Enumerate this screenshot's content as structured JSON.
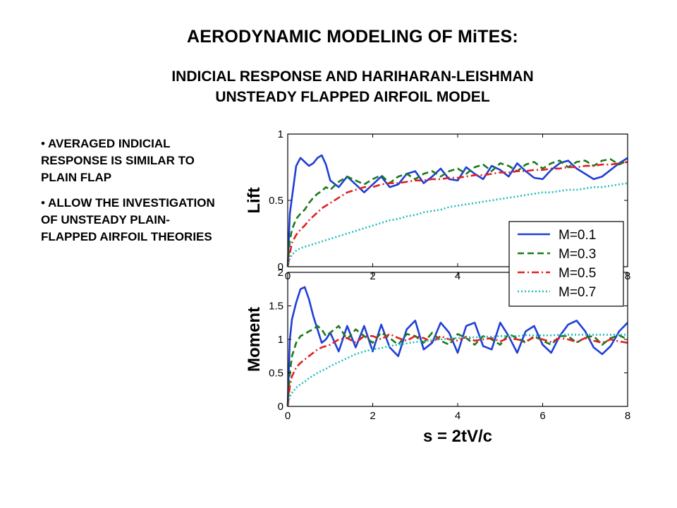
{
  "slide": {
    "title": "AERODYNAMIC  MODELING OF MiTES:",
    "subtitle_line1": "INDICIAL RESPONSE AND HARIHARAN-LEISHMAN",
    "subtitle_line2": "UNSTEADY FLAPPED AIRFOIL MODEL",
    "bullets": [
      "AVERAGED INDICIAL RESPONSE IS SIMILAR TO PLAIN FLAP",
      "ALLOW THE INVESTIGATION OF UNSTEADY PLAIN-FLAPPED AIRFOIL THEORIES"
    ],
    "bullet_glyph": "•"
  },
  "chart_data": [
    {
      "type": "line",
      "panel": "top",
      "ylabel": "Lift",
      "xlabel": "",
      "xlim": [
        0,
        8
      ],
      "ylim": [
        0,
        1
      ],
      "yticks": [
        "0",
        "0.5",
        "1"
      ],
      "xticks": [
        "0",
        "2",
        "4",
        "6",
        "8"
      ],
      "grid": false,
      "legend_position": "right",
      "x": [
        0,
        0.05,
        0.1,
        0.2,
        0.3,
        0.4,
        0.5,
        0.6,
        0.7,
        0.8,
        0.9,
        1.0,
        1.2,
        1.4,
        1.6,
        1.8,
        2.0,
        2.2,
        2.4,
        2.6,
        2.8,
        3.0,
        3.2,
        3.4,
        3.6,
        3.8,
        4.0,
        4.2,
        4.4,
        4.6,
        4.8,
        5.0,
        5.2,
        5.4,
        5.6,
        5.8,
        6.0,
        6.2,
        6.4,
        6.6,
        6.8,
        7.0,
        7.2,
        7.4,
        7.6,
        7.8,
        8.0
      ],
      "series": [
        {
          "name": "M=0.1",
          "color": "#1f3fd6",
          "dash": "solid",
          "values": [
            0.0,
            0.4,
            0.52,
            0.76,
            0.82,
            0.79,
            0.76,
            0.78,
            0.82,
            0.84,
            0.77,
            0.65,
            0.6,
            0.68,
            0.62,
            0.56,
            0.62,
            0.68,
            0.6,
            0.62,
            0.7,
            0.72,
            0.63,
            0.68,
            0.74,
            0.66,
            0.65,
            0.75,
            0.7,
            0.66,
            0.76,
            0.73,
            0.68,
            0.78,
            0.72,
            0.67,
            0.66,
            0.73,
            0.78,
            0.8,
            0.74,
            0.7,
            0.66,
            0.68,
            0.73,
            0.78,
            0.82
          ]
        },
        {
          "name": "M=0.3",
          "color": "#1a7a1a",
          "dash": "dashed",
          "values": [
            0.0,
            0.2,
            0.28,
            0.36,
            0.4,
            0.43,
            0.48,
            0.52,
            0.55,
            0.57,
            0.6,
            0.58,
            0.64,
            0.68,
            0.65,
            0.62,
            0.66,
            0.69,
            0.63,
            0.68,
            0.7,
            0.66,
            0.7,
            0.72,
            0.68,
            0.72,
            0.74,
            0.7,
            0.75,
            0.77,
            0.72,
            0.78,
            0.76,
            0.72,
            0.77,
            0.79,
            0.74,
            0.78,
            0.8,
            0.75,
            0.79,
            0.8,
            0.76,
            0.8,
            0.81,
            0.77,
            0.8
          ]
        },
        {
          "name": "M=0.5",
          "color": "#e02020",
          "dash": "dashdot",
          "values": [
            0.0,
            0.1,
            0.18,
            0.24,
            0.28,
            0.31,
            0.35,
            0.38,
            0.41,
            0.44,
            0.46,
            0.48,
            0.52,
            0.56,
            0.58,
            0.6,
            0.6,
            0.62,
            0.63,
            0.63,
            0.64,
            0.65,
            0.65,
            0.66,
            0.66,
            0.67,
            0.67,
            0.68,
            0.69,
            0.69,
            0.7,
            0.71,
            0.71,
            0.72,
            0.72,
            0.73,
            0.73,
            0.74,
            0.74,
            0.75,
            0.75,
            0.76,
            0.76,
            0.77,
            0.77,
            0.78,
            0.79
          ]
        },
        {
          "name": "M=0.7",
          "color": "#22bdbd",
          "dash": "dotted",
          "values": [
            0.0,
            0.06,
            0.09,
            0.12,
            0.14,
            0.15,
            0.16,
            0.17,
            0.18,
            0.19,
            0.2,
            0.21,
            0.23,
            0.25,
            0.27,
            0.29,
            0.31,
            0.33,
            0.35,
            0.36,
            0.38,
            0.39,
            0.41,
            0.42,
            0.43,
            0.45,
            0.46,
            0.47,
            0.48,
            0.49,
            0.5,
            0.51,
            0.52,
            0.53,
            0.54,
            0.55,
            0.56,
            0.56,
            0.57,
            0.58,
            0.58,
            0.59,
            0.6,
            0.6,
            0.61,
            0.62,
            0.63
          ]
        }
      ]
    },
    {
      "type": "line",
      "panel": "bottom",
      "ylabel": "Moment",
      "xlabel": "s = 2tV/c",
      "xlim": [
        0,
        8
      ],
      "ylim": [
        0,
        2
      ],
      "yticks": [
        "0",
        "0.5",
        "1",
        "1.5",
        "2"
      ],
      "xticks": [
        "0",
        "2",
        "4",
        "6",
        "8"
      ],
      "grid": false,
      "x": [
        0,
        0.05,
        0.1,
        0.2,
        0.3,
        0.4,
        0.5,
        0.6,
        0.7,
        0.8,
        0.9,
        1.0,
        1.2,
        1.4,
        1.6,
        1.8,
        2.0,
        2.2,
        2.4,
        2.6,
        2.8,
        3.0,
        3.2,
        3.4,
        3.6,
        3.8,
        4.0,
        4.2,
        4.4,
        4.6,
        4.8,
        5.0,
        5.2,
        5.4,
        5.6,
        5.8,
        6.0,
        6.2,
        6.4,
        6.6,
        6.8,
        7.0,
        7.2,
        7.4,
        7.6,
        7.8,
        8.0
      ],
      "series": [
        {
          "name": "M=0.1",
          "color": "#1f3fd6",
          "dash": "solid",
          "values": [
            0.0,
            1.0,
            1.3,
            1.55,
            1.75,
            1.78,
            1.6,
            1.35,
            1.15,
            0.95,
            1.0,
            1.1,
            0.82,
            1.2,
            0.88,
            1.2,
            0.82,
            1.22,
            0.88,
            0.75,
            1.15,
            1.28,
            0.85,
            0.95,
            1.25,
            1.1,
            0.8,
            1.2,
            1.25,
            0.9,
            0.85,
            1.25,
            1.05,
            0.8,
            1.12,
            1.2,
            0.92,
            0.8,
            1.05,
            1.22,
            1.28,
            1.12,
            0.88,
            0.78,
            0.9,
            1.12,
            1.25
          ]
        },
        {
          "name": "M=0.3",
          "color": "#1a7a1a",
          "dash": "dashed",
          "values": [
            0.0,
            0.5,
            0.75,
            0.95,
            1.05,
            1.08,
            1.12,
            1.15,
            1.2,
            1.15,
            1.05,
            1.1,
            1.2,
            1.0,
            1.15,
            1.05,
            0.95,
            1.1,
            1.02,
            0.92,
            1.08,
            1.05,
            0.95,
            1.1,
            0.98,
            0.92,
            1.08,
            1.02,
            0.92,
            1.05,
            1.0,
            0.92,
            1.08,
            1.02,
            0.95,
            1.05,
            0.98,
            0.92,
            1.05,
            1.05,
            0.95,
            1.03,
            1.05,
            0.92,
            1.02,
            1.06,
            1.0
          ]
        },
        {
          "name": "M=0.5",
          "color": "#e02020",
          "dash": "dashdot",
          "values": [
            0.0,
            0.3,
            0.45,
            0.58,
            0.65,
            0.7,
            0.75,
            0.8,
            0.85,
            0.88,
            0.9,
            0.92,
            1.0,
            1.02,
            0.95,
            1.05,
            1.05,
            1.0,
            1.08,
            1.02,
            0.98,
            1.05,
            1.02,
            0.96,
            1.05,
            1.0,
            0.98,
            1.04,
            0.98,
            1.0,
            1.02,
            0.97,
            1.02,
            1.0,
            0.97,
            1.03,
            1.0,
            0.96,
            1.02,
            1.0,
            0.96,
            1.02,
            0.98,
            0.95,
            1.0,
            0.97,
            0.95
          ]
        },
        {
          "name": "M=0.7",
          "color": "#22bdbd",
          "dash": "dotted",
          "values": [
            0.0,
            0.15,
            0.2,
            0.28,
            0.33,
            0.37,
            0.42,
            0.46,
            0.5,
            0.53,
            0.56,
            0.6,
            0.66,
            0.72,
            0.78,
            0.82,
            0.85,
            0.87,
            0.9,
            0.92,
            0.94,
            0.96,
            0.97,
            0.99,
            1.0,
            1.01,
            1.02,
            1.03,
            1.03,
            1.04,
            1.04,
            1.05,
            1.05,
            1.05,
            1.06,
            1.06,
            1.06,
            1.06,
            1.07,
            1.07,
            1.07,
            1.07,
            1.07,
            1.07,
            1.07,
            1.07,
            1.07
          ]
        }
      ]
    }
  ],
  "legend": {
    "entries": [
      "M=0.1",
      "M=0.3",
      "M=0.5",
      "M=0.7"
    ],
    "position": "right"
  }
}
